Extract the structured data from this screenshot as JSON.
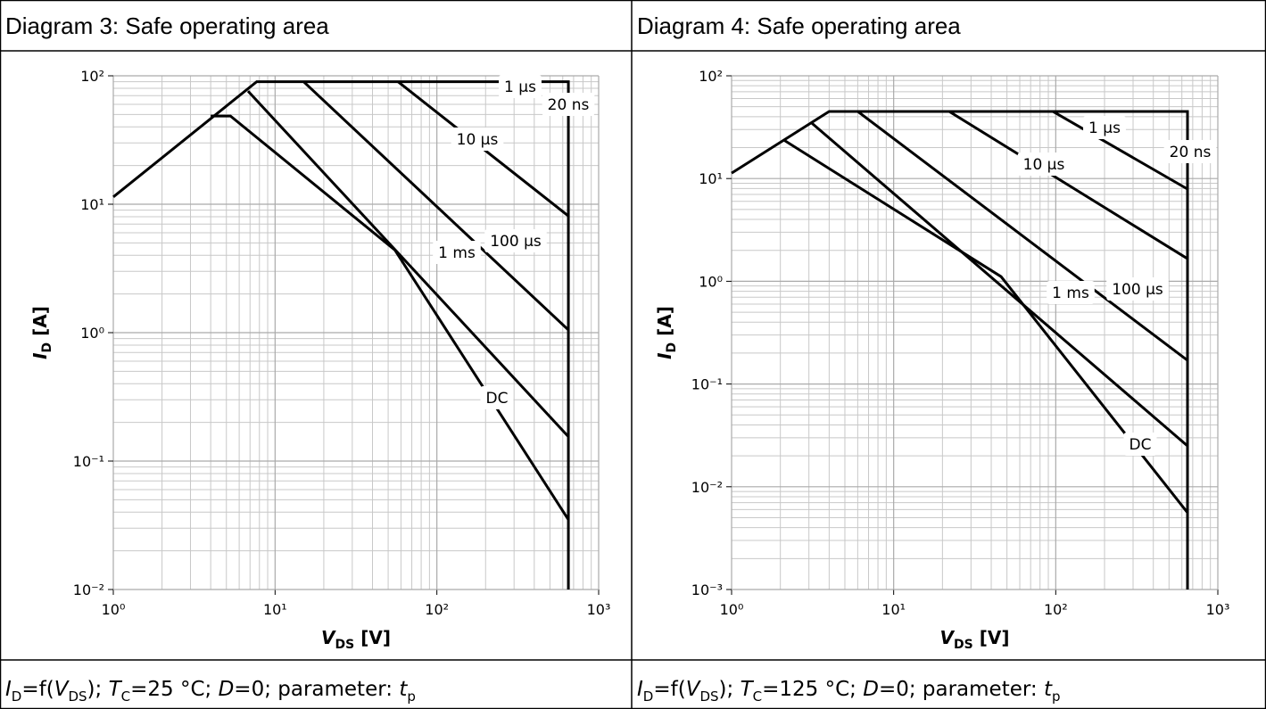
{
  "chart_data": [
    {
      "type": "line",
      "title": "Diagram 3: Safe operating area",
      "log_x": true,
      "log_y": true,
      "grid": true,
      "xlim": [
        1,
        1000
      ],
      "ylim": [
        0.01,
        100
      ],
      "xticks": [
        {
          "value": 1,
          "label": "10⁰"
        },
        {
          "value": 10,
          "label": "10¹"
        },
        {
          "value": 100,
          "label": "10²"
        },
        {
          "value": 1000,
          "label": "10³"
        }
      ],
      "yticks": [
        {
          "value": 0.01,
          "label": "10⁻²"
        },
        {
          "value": 0.1,
          "label": "10⁻¹"
        },
        {
          "value": 1,
          "label": "10⁰"
        },
        {
          "value": 10,
          "label": "10¹"
        },
        {
          "value": 100,
          "label": "10²"
        }
      ],
      "xlabel": {
        "main": "V",
        "sub": "DS",
        "rest": " [V]"
      },
      "ylabel": {
        "main": "I",
        "sub": "D",
        "rest": " [A]"
      },
      "series": [
        {
          "color": "#000000",
          "x": [
            1,
            7.7,
            650,
            650
          ],
          "values": [
            11.4,
            90,
            90,
            0.01
          ]
        },
        {
          "color": "#000000",
          "x": [
            57.5,
            650
          ],
          "values": [
            90,
            8.1
          ]
        },
        {
          "color": "#000000",
          "x": [
            15,
            650
          ],
          "values": [
            90,
            1.05
          ]
        },
        {
          "color": "#000000",
          "x": [
            6.8,
            650
          ],
          "values": [
            76,
            0.155
          ]
        },
        {
          "color": "#000000",
          "x": [
            4.0,
            5.3,
            55,
            650
          ],
          "values": [
            48.6,
            48.6,
            4.4,
            0.035
          ]
        }
      ],
      "annotations": [
        "1 µs",
        "20 ns",
        "10 µs",
        "100 µs",
        "1 ms",
        "DC"
      ],
      "caption": [
        "I",
        "D",
        "=f(",
        "V",
        "DS",
        "); ",
        "T",
        "C",
        "=25 °C; ",
        "D",
        "=0; parameter: ",
        "t",
        "p"
      ]
    },
    {
      "type": "line",
      "title": "Diagram 4: Safe operating area",
      "log_x": true,
      "log_y": true,
      "grid": true,
      "xlim": [
        1,
        1000
      ],
      "ylim": [
        0.001,
        100
      ],
      "xticks": [
        {
          "value": 1,
          "label": "10⁰"
        },
        {
          "value": 10,
          "label": "10¹"
        },
        {
          "value": 100,
          "label": "10²"
        },
        {
          "value": 1000,
          "label": "10³"
        }
      ],
      "yticks": [
        {
          "value": 0.001,
          "label": "10⁻³"
        },
        {
          "value": 0.01,
          "label": "10⁻²"
        },
        {
          "value": 0.1,
          "label": "10⁻¹"
        },
        {
          "value": 1,
          "label": "10⁰"
        },
        {
          "value": 10,
          "label": "10¹"
        },
        {
          "value": 100,
          "label": "10²"
        }
      ],
      "xlabel": {
        "main": "V",
        "sub": "DS",
        "rest": " [V]"
      },
      "ylabel": {
        "main": "I",
        "sub": "D",
        "rest": " [A]"
      },
      "series": [
        {
          "color": "#000000",
          "x": [
            1,
            4.0,
            650,
            650
          ],
          "values": [
            11.3,
            45,
            45,
            0.001
          ]
        },
        {
          "color": "#000000",
          "x": [
            96,
            650
          ],
          "values": [
            45,
            7.9
          ]
        },
        {
          "color": "#000000",
          "x": [
            22,
            650
          ],
          "values": [
            45,
            1.66
          ]
        },
        {
          "color": "#000000",
          "x": [
            6.0,
            650
          ],
          "values": [
            45,
            0.17
          ]
        },
        {
          "color": "#000000",
          "x": [
            3.1,
            650
          ],
          "values": [
            35,
            0.025
          ]
        },
        {
          "color": "#000000",
          "x": [
            2.1,
            46,
            650
          ],
          "values": [
            23.7,
            1.11,
            0.0056
          ]
        }
      ],
      "annotations": [
        "1 µs",
        "20 ns",
        "10 µs",
        "1 ms",
        "100 µs",
        "DC"
      ],
      "caption": [
        "I",
        "D",
        "=f(",
        "V",
        "DS",
        "); ",
        "T",
        "C",
        "=125 °C; ",
        "D",
        "=0; parameter: ",
        "t",
        "p"
      ]
    }
  ]
}
